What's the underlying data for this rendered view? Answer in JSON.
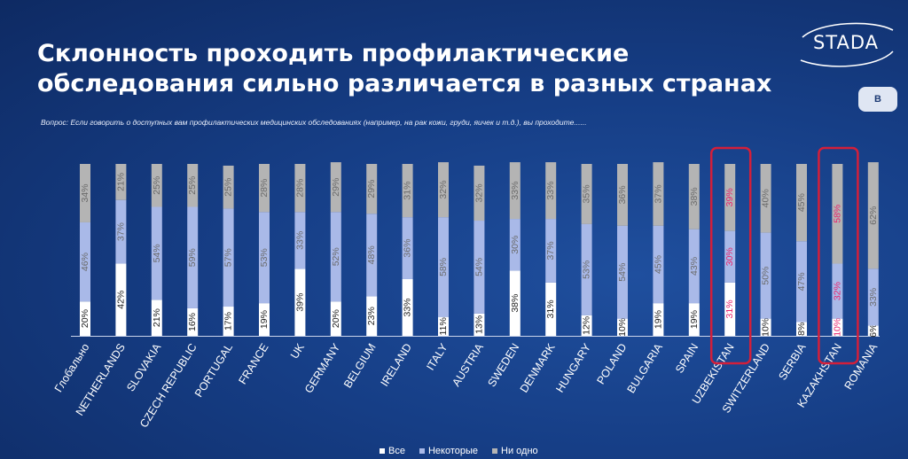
{
  "header": {
    "title_line1": "Склонность проходить профилактические",
    "title_line2": "обследования сильно различается в разных странах",
    "question": "Вопрос: Если говорить о доступных вам профилактических медицинских обследованиях (например, на рак кожи, груди, яичек и т.д.), вы проходите......",
    "logo": "STADA",
    "badge": "B"
  },
  "colors": {
    "all": "#ffffff",
    "some": "#a9b9e8",
    "none": "#b4b4b4",
    "highlight_text": "#e8246e",
    "highlight_box": "#d31f3a"
  },
  "chart_data": {
    "type": "bar",
    "stacked": true,
    "percent": true,
    "categories": [
      "Глобально",
      "NETHERLANDS",
      "SLOVAKIA",
      "CZECH REPUBLIC",
      "PORTUGAL",
      "FRANCE",
      "UK",
      "GERMANY",
      "BELGIUM",
      "IRELAND",
      "ITALY",
      "AUSTRIA",
      "SWEDEN",
      "DENMARK",
      "HUNGARY",
      "POLAND",
      "BULGARIA",
      "SPAIN",
      "UZBEKISTAN",
      "SWITZERLAND",
      "SERBIA",
      "KAZAKHSTAN",
      "ROMANIA"
    ],
    "series": [
      {
        "name": "Все",
        "values": [
          20,
          42,
          21,
          16,
          17,
          19,
          39,
          20,
          23,
          33,
          11,
          13,
          38,
          31,
          12,
          10,
          19,
          19,
          31,
          10,
          8,
          10,
          6
        ]
      },
      {
        "name": "Некоторые",
        "values": [
          46,
          37,
          54,
          59,
          57,
          53,
          33,
          52,
          48,
          36,
          58,
          54,
          30,
          37,
          53,
          54,
          45,
          43,
          30,
          50,
          47,
          32,
          33
        ]
      },
      {
        "name": "Ни одно",
        "values": [
          34,
          21,
          25,
          25,
          25,
          28,
          28,
          29,
          29,
          31,
          32,
          32,
          33,
          33,
          35,
          36,
          37,
          38,
          39,
          40,
          45,
          58,
          62
        ]
      }
    ],
    "highlighted": [
      "UZBEKISTAN",
      "KAZAKHSTAN"
    ],
    "ylim": [
      0,
      100
    ],
    "legend_position": "bottom"
  }
}
